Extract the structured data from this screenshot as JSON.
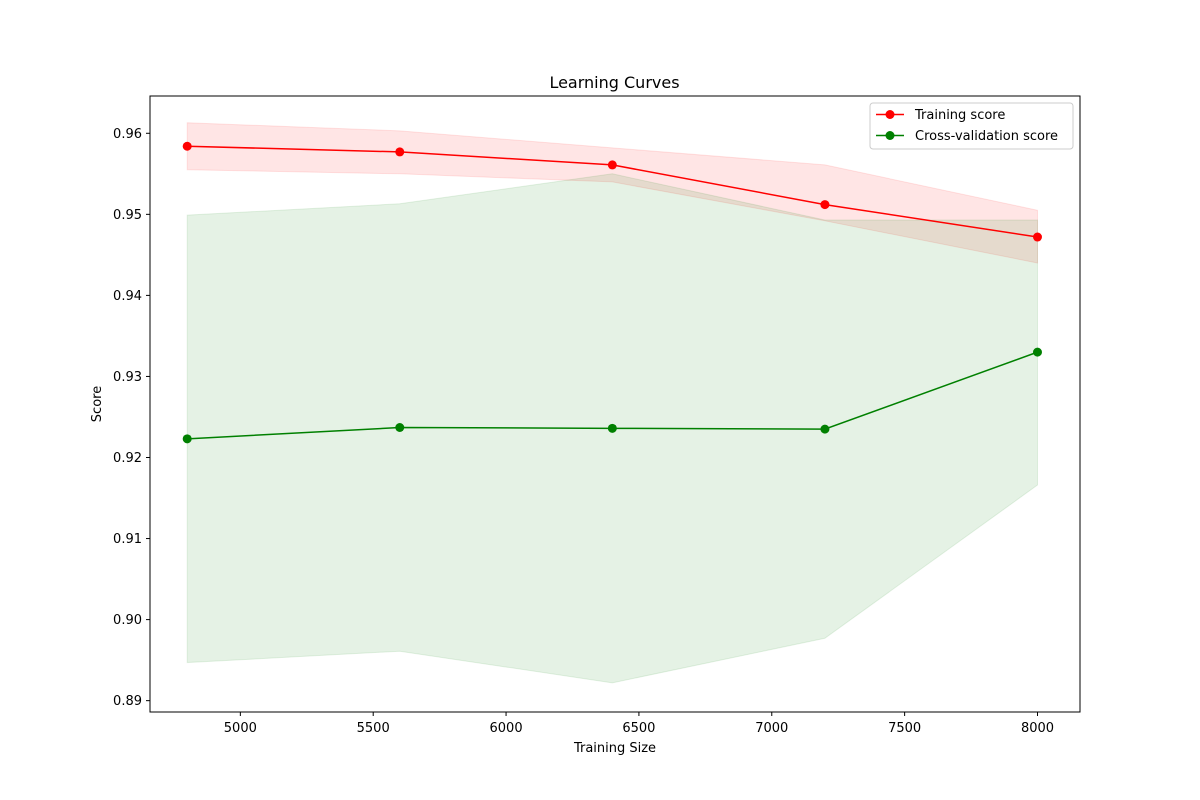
{
  "chart_data": {
    "type": "line",
    "title": "Learning Curves",
    "xlabel": "Training Size",
    "ylabel": "Score",
    "xlim": [
      4660,
      8160
    ],
    "ylim": [
      0.8886,
      0.9646
    ],
    "xticks": [
      5000,
      5500,
      6000,
      6500,
      7000,
      7500,
      8000
    ],
    "yticks": [
      0.89,
      0.9,
      0.91,
      0.92,
      0.93,
      0.94,
      0.95,
      0.96
    ],
    "ytick_labels": [
      "0.89",
      "0.90",
      "0.91",
      "0.92",
      "0.93",
      "0.94",
      "0.95",
      "0.96"
    ],
    "grid": false,
    "legend_position": "top-right",
    "x": [
      4800,
      5600,
      6400,
      7200,
      8000
    ],
    "series": [
      {
        "name": "Training score",
        "color": "#ff0000",
        "band_color": "#ffcccc",
        "values": [
          0.9584,
          0.9577,
          0.9561,
          0.9512,
          0.9472
        ],
        "upper": [
          0.9613,
          0.9603,
          0.9582,
          0.9561,
          0.9505
        ],
        "lower": [
          0.9555,
          0.955,
          0.954,
          0.9492,
          0.944
        ]
      },
      {
        "name": "Cross-validation score",
        "color": "#008000",
        "band_color": "#b2d8b2",
        "values": [
          0.9223,
          0.9237,
          0.9236,
          0.9235,
          0.933
        ],
        "upper": [
          0.9499,
          0.9513,
          0.955,
          0.9493,
          0.9493
        ],
        "lower": [
          0.8947,
          0.8961,
          0.8922,
          0.8977,
          0.9166
        ]
      }
    ]
  }
}
